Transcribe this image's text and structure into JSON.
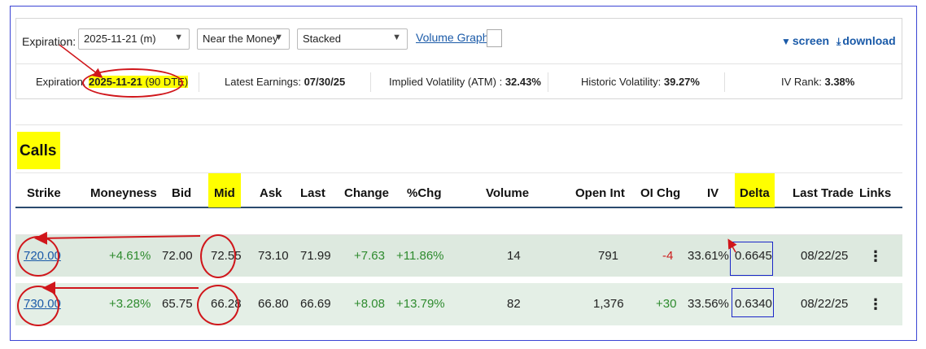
{
  "toolbar": {
    "expiration_label": "Expiration:",
    "expiration_select": "2025-11-21 (m)",
    "moneyness_select": "Near the Money",
    "view_select": "Stacked",
    "volume_graph_link": "Volume Graph",
    "screen_link": "screen",
    "download_link": "download"
  },
  "info": {
    "expiration_label": "Expiration:",
    "expiration_date": "2025-11-21",
    "expiration_dte": "(90 DTE)",
    "earnings_label": "Latest Earnings:",
    "earnings_value": "07/30/25",
    "iv_label": "Implied Volatility (ATM) :",
    "iv_value": "32.43%",
    "hv_label": "Historic Volatility:",
    "hv_value": "39.27%",
    "ivrank_label": "IV Rank:",
    "ivrank_value": "3.38%"
  },
  "calls": {
    "title": "Calls",
    "columns": [
      "Strike",
      "Moneyness",
      "Bid",
      "Mid",
      "Ask",
      "Last",
      "Change",
      "%Chg",
      "Volume",
      "Open Int",
      "OI Chg",
      "IV",
      "Delta",
      "Last Trade",
      "Links"
    ],
    "rows": [
      {
        "strike": "720.00",
        "moneyness": "+4.61%",
        "bid": "72.00",
        "mid": "72.55",
        "ask": "73.10",
        "last": "71.99",
        "change": "+7.63",
        "pct_chg": "+11.86%",
        "volume": "14",
        "open_int": "791",
        "oi_chg": "-4",
        "iv": "33.61%",
        "delta": "0.6645",
        "last_trade": "08/22/25",
        "links": "⋮"
      },
      {
        "strike": "730.00",
        "moneyness": "+3.28%",
        "bid": "65.75",
        "mid": "66.28",
        "ask": "66.80",
        "last": "66.69",
        "change": "+8.08",
        "pct_chg": "+13.79%",
        "volume": "82",
        "open_int": "1,376",
        "oi_chg": "+30",
        "iv": "33.56%",
        "delta": "0.6340",
        "last_trade": "08/22/25",
        "links": "⋮"
      }
    ]
  },
  "colors": {
    "link": "#1a5aa8",
    "highlight": "#ffff00",
    "annotation": "#d0161b",
    "positive": "#2e8b2e",
    "negative": "#cc1b1b",
    "row_bg": "#dde9df"
  },
  "icons": {
    "filter": "filter-icon",
    "download": "download-icon",
    "dropdown": "chevron-down-icon",
    "menu": "kebab-menu-icon"
  }
}
